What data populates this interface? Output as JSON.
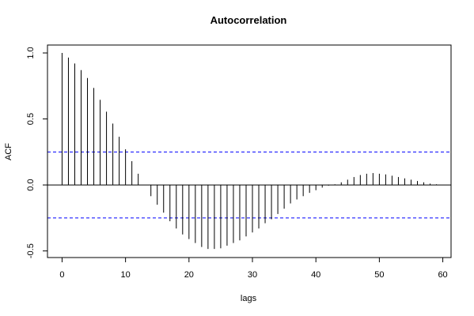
{
  "chart_data": {
    "type": "bar",
    "title": "Autocorrelation",
    "xlabel": "lags",
    "ylabel": "ACF",
    "xlim": [
      -2.3,
      61.3
    ],
    "ylim": [
      -0.55,
      1.06
    ],
    "x_ticks": [
      0,
      10,
      20,
      30,
      40,
      50,
      60
    ],
    "y_ticks": [
      -0.5,
      0.0,
      0.5,
      1.0
    ],
    "y_tick_labels": [
      "-0.5",
      "0.0",
      "0.5",
      "1.0"
    ],
    "confidence_band": [
      0.25,
      -0.25
    ],
    "colors": {
      "bars": "#000000",
      "band": "#0000ff",
      "zero_line": "#000000"
    },
    "lags": [
      0,
      1,
      2,
      3,
      4,
      5,
      6,
      7,
      8,
      9,
      10,
      11,
      12,
      13,
      14,
      15,
      16,
      17,
      18,
      19,
      20,
      21,
      22,
      23,
      24,
      25,
      26,
      27,
      28,
      29,
      30,
      31,
      32,
      33,
      34,
      35,
      36,
      37,
      38,
      39,
      40,
      41,
      42,
      43,
      44,
      45,
      46,
      47,
      48,
      49,
      50,
      51,
      52,
      53,
      54,
      55,
      56,
      57,
      58,
      59
    ],
    "values": [
      1.0,
      0.965,
      0.92,
      0.87,
      0.81,
      0.735,
      0.645,
      0.555,
      0.465,
      0.365,
      0.27,
      0.18,
      0.085,
      0.0,
      -0.085,
      -0.15,
      -0.21,
      -0.275,
      -0.33,
      -0.375,
      -0.41,
      -0.44,
      -0.47,
      -0.485,
      -0.485,
      -0.48,
      -0.46,
      -0.44,
      -0.42,
      -0.39,
      -0.36,
      -0.33,
      -0.29,
      -0.26,
      -0.22,
      -0.18,
      -0.14,
      -0.11,
      -0.085,
      -0.06,
      -0.04,
      -0.02,
      -0.005,
      0.005,
      0.02,
      0.04,
      0.06,
      0.075,
      0.085,
      0.09,
      0.085,
      0.08,
      0.07,
      0.06,
      0.05,
      0.04,
      0.03,
      0.02,
      0.01,
      0.005
    ]
  }
}
